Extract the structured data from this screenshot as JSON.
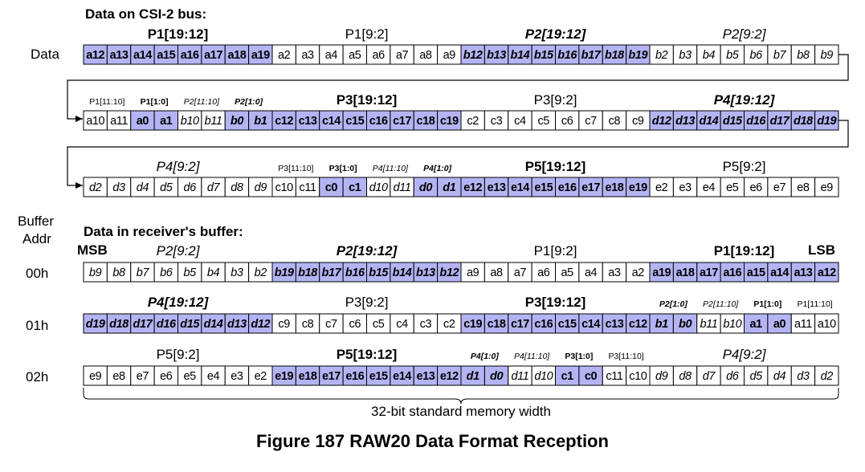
{
  "headings": {
    "bus": "Data on CSI-2 bus:",
    "receiver": "Data in receiver's buffer:",
    "data_label": "Data",
    "buffer_addr_line1": "Buffer",
    "buffer_addr_line2": "Addr",
    "msb": "MSB",
    "lsb": "LSB"
  },
  "colors": {
    "highlight": "#b4b4f4",
    "border": "#000000",
    "plain": "#ffffff"
  },
  "bus_rows": [
    {
      "groups": [
        {
          "label": "P1[19:12]",
          "style": "bold",
          "cells": [
            "a12",
            "a13",
            "a14",
            "a15",
            "a16",
            "a17",
            "a18",
            "a19"
          ],
          "hl": true
        },
        {
          "label": "P1[9:2]",
          "style": "normal",
          "cells": [
            "a2",
            "a3",
            "a4",
            "a5",
            "a6",
            "a7",
            "a8",
            "a9"
          ],
          "hl": false
        },
        {
          "label": "P2[19:12]",
          "style": "bolditalic",
          "cells": [
            "b12",
            "b13",
            "b14",
            "b15",
            "b16",
            "b17",
            "b18",
            "b19"
          ],
          "hl": true
        },
        {
          "label": "P2[9:2]",
          "style": "italic",
          "cells": [
            "b2",
            "b3",
            "b4",
            "b5",
            "b6",
            "b7",
            "b8",
            "b9"
          ],
          "hl": false
        }
      ]
    },
    {
      "groups": [
        {
          "label": "P1[11:10]",
          "style": "small",
          "cells": [
            "a10",
            "a11"
          ],
          "hl": false
        },
        {
          "label": "P1[1:0]",
          "style": "smallbold",
          "cells": [
            "a0",
            "a1"
          ],
          "hl": true
        },
        {
          "label": "P2[11:10]",
          "style": "smallitalic",
          "cells": [
            "b10",
            "b11"
          ],
          "hl": false
        },
        {
          "label": "P2[1:0]",
          "style": "smallbolditalic",
          "cells": [
            "b0",
            "b1"
          ],
          "hl": true
        },
        {
          "label": "P3[19:12]",
          "style": "bold",
          "cells": [
            "c12",
            "c13",
            "c14",
            "c15",
            "c16",
            "c17",
            "c18",
            "c19"
          ],
          "hl": true
        },
        {
          "label": "P3[9:2]",
          "style": "normal",
          "cells": [
            "c2",
            "c3",
            "c4",
            "c5",
            "c6",
            "c7",
            "c8",
            "c9"
          ],
          "hl": false
        },
        {
          "label": "P4[19:12]",
          "style": "bolditalic",
          "cells": [
            "d12",
            "d13",
            "d14",
            "d15",
            "d16",
            "d17",
            "d18",
            "d19"
          ],
          "hl": true
        }
      ]
    },
    {
      "groups": [
        {
          "label": "P4[9:2]",
          "style": "italic",
          "cells": [
            "d2",
            "d3",
            "d4",
            "d5",
            "d6",
            "d7",
            "d8",
            "d9"
          ],
          "hl": false
        },
        {
          "label": "P3[11:10]",
          "style": "small",
          "cells": [
            "c10",
            "c11"
          ],
          "hl": false
        },
        {
          "label": "P3[1:0]",
          "style": "smallbold",
          "cells": [
            "c0",
            "c1"
          ],
          "hl": true
        },
        {
          "label": "P4[11:10]",
          "style": "smallitalic",
          "cells": [
            "d10",
            "d11"
          ],
          "hl": false
        },
        {
          "label": "P4[1:0]",
          "style": "smallbolditalic",
          "cells": [
            "d0",
            "d1"
          ],
          "hl": true
        },
        {
          "label": "P5[19:12]",
          "style": "bold",
          "cells": [
            "e12",
            "e13",
            "e14",
            "e15",
            "e16",
            "e17",
            "e18",
            "e19"
          ],
          "hl": true
        },
        {
          "label": "P5[9:2]",
          "style": "normal",
          "cells": [
            "e2",
            "e3",
            "e4",
            "e5",
            "e6",
            "e7",
            "e8",
            "e9"
          ],
          "hl": false
        }
      ]
    }
  ],
  "buffer_rows": [
    {
      "addr": "00h",
      "groups": [
        {
          "label": "P2[9:2]",
          "style": "italic",
          "cells": [
            "b9",
            "b8",
            "b7",
            "b6",
            "b5",
            "b4",
            "b3",
            "b2"
          ],
          "hl": false
        },
        {
          "label": "P2[19:12]",
          "style": "bolditalic",
          "cells": [
            "b19",
            "b18",
            "b17",
            "b16",
            "b15",
            "b14",
            "b13",
            "b12"
          ],
          "hl": true
        },
        {
          "label": "P1[9:2]",
          "style": "normal",
          "cells": [
            "a9",
            "a8",
            "a7",
            "a6",
            "a5",
            "a4",
            "a3",
            "a2"
          ],
          "hl": false
        },
        {
          "label": "P1[19:12]",
          "style": "bold",
          "cells": [
            "a19",
            "a18",
            "a17",
            "a16",
            "a15",
            "a14",
            "a13",
            "a12"
          ],
          "hl": true
        }
      ]
    },
    {
      "addr": "01h",
      "groups": [
        {
          "label": "P4[19:12]",
          "style": "bolditalic",
          "cells": [
            "d19",
            "d18",
            "d17",
            "d16",
            "d15",
            "d14",
            "d13",
            "d12"
          ],
          "hl": true
        },
        {
          "label": "P3[9:2]",
          "style": "normal",
          "cells": [
            "c9",
            "c8",
            "c7",
            "c6",
            "c5",
            "c4",
            "c3",
            "c2"
          ],
          "hl": false
        },
        {
          "label": "P3[19:12]",
          "style": "bold",
          "cells": [
            "c19",
            "c18",
            "c17",
            "c16",
            "c15",
            "c14",
            "c13",
            "c12"
          ],
          "hl": true
        },
        {
          "label": "P2[1:0]",
          "style": "smallbolditalic",
          "cells": [
            "b1",
            "b0"
          ],
          "hl": true
        },
        {
          "label": "P2[11:10]",
          "style": "smallitalic",
          "cells": [
            "b11",
            "b10"
          ],
          "hl": false
        },
        {
          "label": "P1[1:0]",
          "style": "smallbold",
          "cells": [
            "a1",
            "a0"
          ],
          "hl": true
        },
        {
          "label": "P1[11:10]",
          "style": "small",
          "cells": [
            "a11",
            "a10"
          ],
          "hl": false
        }
      ]
    },
    {
      "addr": "02h",
      "groups": [
        {
          "label": "P5[9:2]",
          "style": "normal",
          "cells": [
            "e9",
            "e8",
            "e7",
            "e6",
            "e5",
            "e4",
            "e3",
            "e2"
          ],
          "hl": false
        },
        {
          "label": "P5[19:12]",
          "style": "bold",
          "cells": [
            "e19",
            "e18",
            "e17",
            "e16",
            "e15",
            "e14",
            "e13",
            "e12"
          ],
          "hl": true
        },
        {
          "label": "P4[1:0]",
          "style": "smallbolditalic",
          "cells": [
            "d1",
            "d0"
          ],
          "hl": true
        },
        {
          "label": "P4[11:10]",
          "style": "smallitalic",
          "cells": [
            "d11",
            "d10"
          ],
          "hl": false
        },
        {
          "label": "P3[1:0]",
          "style": "smallbold",
          "cells": [
            "c1",
            "c0"
          ],
          "hl": true
        },
        {
          "label": "P3[11:10]",
          "style": "small",
          "cells": [
            "c11",
            "c10"
          ],
          "hl": false
        },
        {
          "label": "P4[9:2]",
          "style": "italic",
          "cells": [
            "d9",
            "d8",
            "d7",
            "d6",
            "d5",
            "d4",
            "d3",
            "d2"
          ],
          "hl": false
        }
      ]
    }
  ],
  "brace_label": "32-bit standard memory width",
  "caption": "Figure 187 RAW20 Data Format Reception"
}
